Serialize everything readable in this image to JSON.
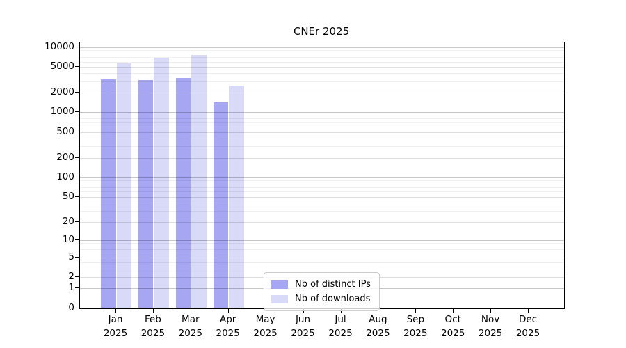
{
  "chart_data": {
    "type": "bar",
    "title": "CNEr 2025",
    "categories": [
      "Jan",
      "Feb",
      "Mar",
      "Apr",
      "May",
      "Jun",
      "Jul",
      "Aug",
      "Sep",
      "Oct",
      "Nov",
      "Dec"
    ],
    "year_label": "2025",
    "series": [
      {
        "name": "Nb of distinct IPs",
        "color": "#a6a6f3",
        "values": [
          3180,
          3100,
          3340,
          1410,
          null,
          null,
          null,
          null,
          null,
          null,
          null,
          null
        ]
      },
      {
        "name": "Nb of downloads",
        "color": "#d9d9f8",
        "values": [
          5650,
          6810,
          7510,
          2600,
          null,
          null,
          null,
          null,
          null,
          null,
          null,
          null
        ]
      }
    ],
    "y_ticks": [
      0,
      1,
      2,
      5,
      10,
      20,
      50,
      100,
      200,
      500,
      1000,
      2000,
      5000,
      10000
    ],
    "scale": "log1p",
    "ylim": [
      0,
      10000
    ],
    "grid": "horizontal-major-and-minor",
    "legend_position": "lower-center"
  },
  "colors": {
    "background": "#ffffff",
    "spine": "#000000",
    "grid_major": "#c7c7c7",
    "grid_minor": "#efefef",
    "text": "#000000"
  }
}
